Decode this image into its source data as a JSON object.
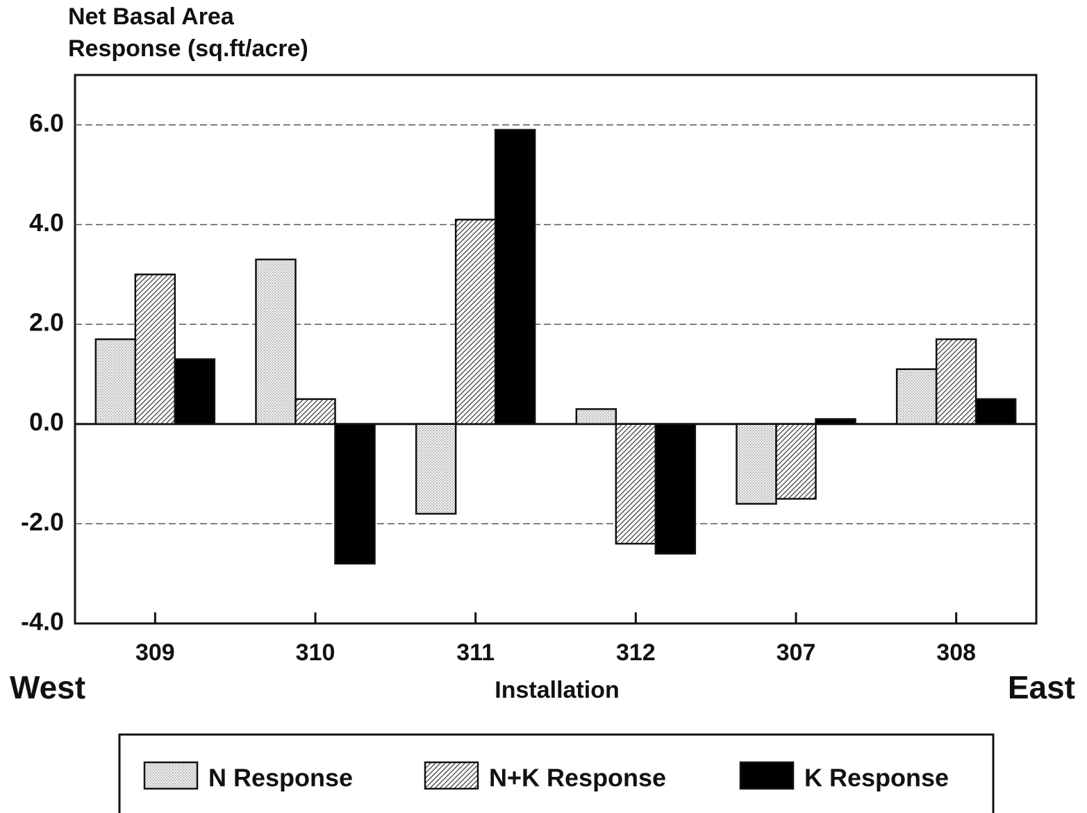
{
  "chart_data": {
    "type": "bar",
    "ylabel_lines": [
      "Net Basal Area",
      "Response (sq.ft/acre)"
    ],
    "xlabel": "Installation",
    "annotations": [
      "West",
      "East"
    ],
    "categories": [
      "309",
      "310",
      "311",
      "312",
      "307",
      "308"
    ],
    "series": [
      {
        "name": "N Response",
        "color": "#d8d8d8",
        "pattern": "stipple",
        "values": [
          1.7,
          3.3,
          -1.8,
          0.3,
          -1.6,
          1.1
        ]
      },
      {
        "name": "N+K Response",
        "color": "#222222",
        "pattern": "hatch",
        "values": [
          3.0,
          0.5,
          4.1,
          -2.4,
          -1.5,
          1.7
        ]
      },
      {
        "name": "K Response",
        "color": "#000000",
        "pattern": "solid",
        "values": [
          1.3,
          -2.8,
          5.9,
          -2.6,
          0.1,
          0.5
        ]
      }
    ],
    "ylim": [
      -4,
      7
    ],
    "yticks": [
      {
        "value": -4,
        "label": "-4.0"
      },
      {
        "value": -2,
        "label": "-2.0"
      },
      {
        "value": 0,
        "label": "0.0"
      },
      {
        "value": 2,
        "label": "2.0"
      },
      {
        "value": 4,
        "label": "4.0"
      },
      {
        "value": 6,
        "label": "6.0"
      }
    ],
    "grid": true,
    "legend": "bottom"
  }
}
